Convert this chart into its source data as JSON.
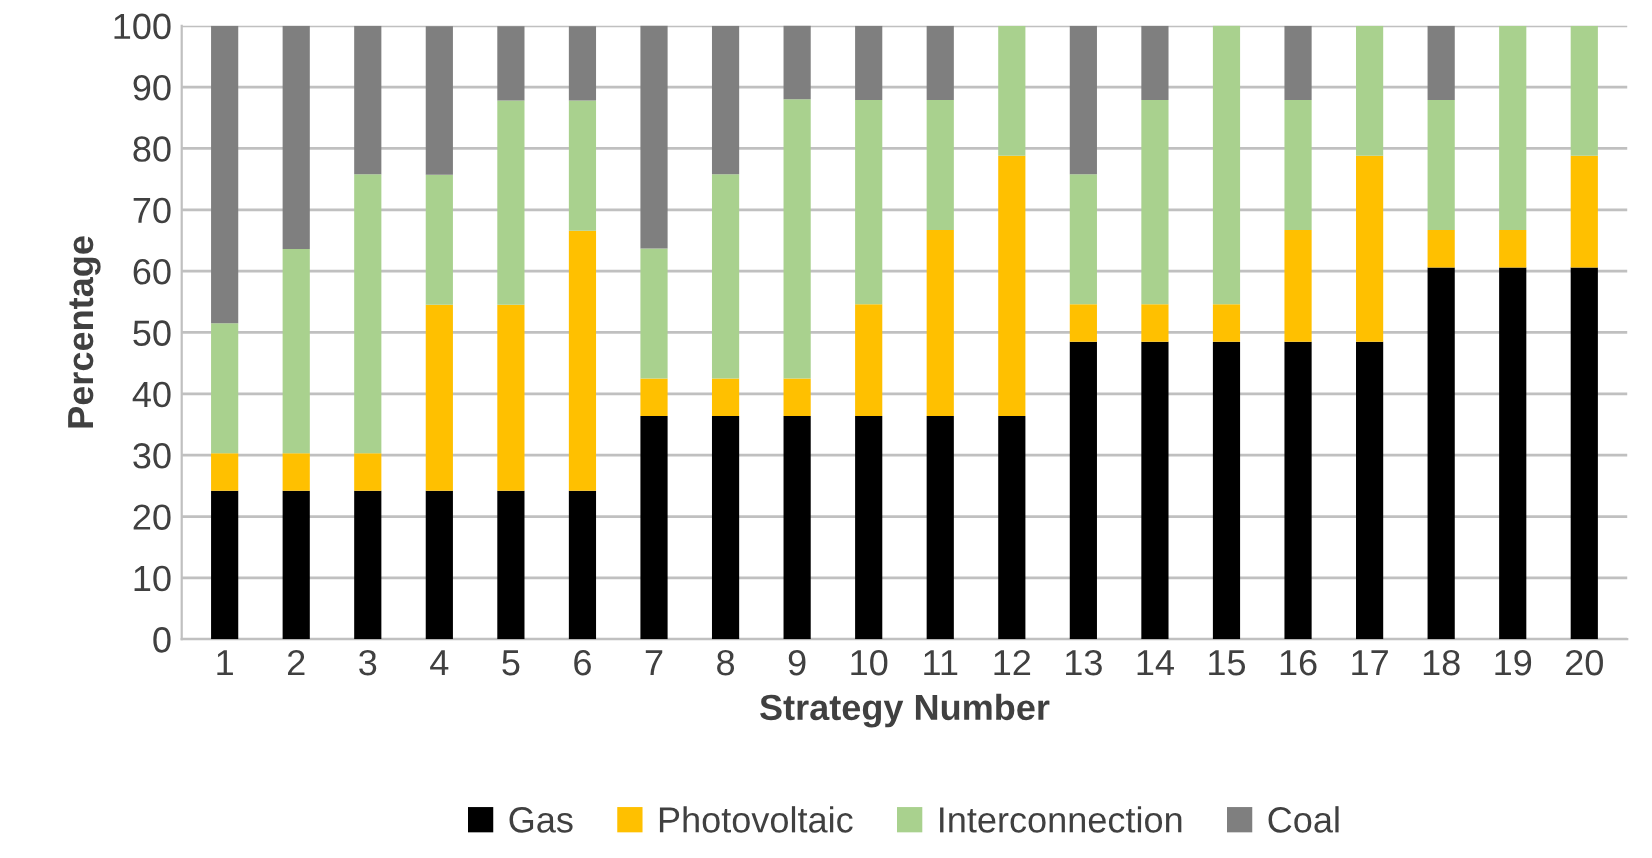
{
  "chart_data": {
    "type": "bar",
    "stacked": true,
    "xlabel": "Strategy Number",
    "ylabel": "Percentage",
    "categories": [
      "1",
      "2",
      "3",
      "4",
      "5",
      "6",
      "7",
      "8",
      "9",
      "10",
      "11",
      "12",
      "13",
      "14",
      "15",
      "16",
      "17",
      "18",
      "19",
      "20"
    ],
    "series": [
      {
        "name": "Gas",
        "color": "#000000",
        "values": [
          24.2,
          24.2,
          24.2,
          24.2,
          24.2,
          24.2,
          36.4,
          36.4,
          36.4,
          36.4,
          36.4,
          36.4,
          48.5,
          48.5,
          48.5,
          48.5,
          48.5,
          60.6,
          60.6,
          60.6
        ]
      },
      {
        "name": "Photovoltaic",
        "color": "#ffc000",
        "values": [
          6.1,
          6.1,
          6.1,
          30.3,
          30.3,
          42.4,
          6.1,
          6.1,
          6.1,
          18.2,
          30.3,
          42.4,
          6.1,
          6.1,
          6.1,
          18.2,
          30.3,
          6.1,
          6.1,
          18.2
        ]
      },
      {
        "name": "Interconnection",
        "color": "#a9d18e",
        "values": [
          21.2,
          33.3,
          45.5,
          21.2,
          33.3,
          21.2,
          21.2,
          33.3,
          45.5,
          33.3,
          21.2,
          21.2,
          21.2,
          33.3,
          45.5,
          21.2,
          21.2,
          21.2,
          33.3,
          21.2
        ]
      },
      {
        "name": "Coal",
        "color": "#7f7f7f",
        "values": [
          48.5,
          36.4,
          24.2,
          24.2,
          12.1,
          12.1,
          36.4,
          24.2,
          12.1,
          12.1,
          12.1,
          0,
          24.2,
          12.1,
          0,
          12.1,
          0,
          12.1,
          0,
          0
        ]
      }
    ],
    "ylim": [
      0,
      100
    ],
    "yticks": [
      0,
      10,
      20,
      30,
      40,
      50,
      60,
      70,
      80,
      90,
      100
    ],
    "grid": "y",
    "legend": "bottom"
  }
}
